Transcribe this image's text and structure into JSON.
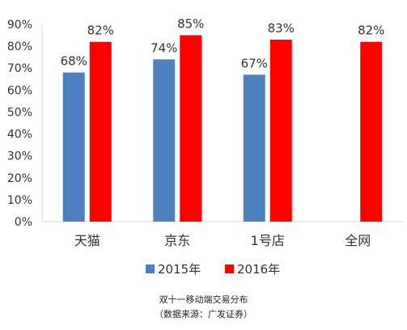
{
  "chart_data": {
    "type": "bar",
    "categories": [
      "天猫",
      "京东",
      "1号店",
      "全网"
    ],
    "series": [
      {
        "name": "2015年",
        "values": [
          68,
          74,
          67,
          null
        ],
        "labels": [
          "68%",
          "74%",
          "67%",
          ""
        ],
        "color": "#4f7fbf"
      },
      {
        "name": "2016年",
        "values": [
          82,
          85,
          83,
          82
        ],
        "labels": [
          "82%",
          "85%",
          "83%",
          "82%"
        ],
        "color": "#ff0000"
      }
    ],
    "ylim": [
      0,
      90
    ],
    "yticks": [
      "0%",
      "10%",
      "20%",
      "30%",
      "40%",
      "50%",
      "60%",
      "70%",
      "80%",
      "90%"
    ],
    "grid": false,
    "legend_position": "bottom",
    "xlabel": "",
    "ylabel": "",
    "title": ""
  },
  "caption": {
    "line1": "双十一移动端交易分布",
    "line2": "（数据来源：广发证券）"
  }
}
